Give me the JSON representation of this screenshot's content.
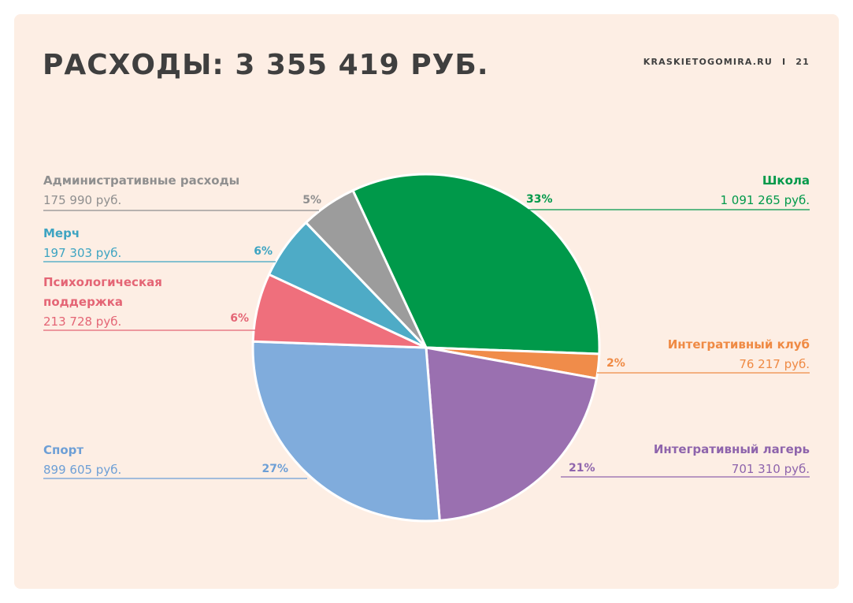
{
  "header": {
    "title": "РАСХОДЫ: 3 355 419 РУБ.",
    "site": "KRASKIETOGOMIRA.RU",
    "separator": "I",
    "page_number": "21"
  },
  "chart_data": {
    "type": "pie",
    "title": "РАСХОДЫ: 3 355 419 РУБ.",
    "slices": [
      {
        "name": "Школа",
        "amount_text": "1 091 265 руб.",
        "value": 1091265,
        "percent": "33%",
        "color": "#00994a",
        "label_color": "#00994a"
      },
      {
        "name": "Интегративный клуб",
        "amount_text": "76 217 руб.",
        "value": 76217,
        "percent": "2%",
        "color": "#f08c4a",
        "label_color": "#ef8a44"
      },
      {
        "name": "Интегративный лагерь",
        "amount_text": "701 310 руб.",
        "value": 701310,
        "percent": "21%",
        "color": "#9a70b0",
        "label_color": "#8e64ac"
      },
      {
        "name": "Спорт",
        "amount_text": "899 605 руб.",
        "value": 899605,
        "percent": "27%",
        "color": "#80acdc",
        "label_color": "#6d9fd6"
      },
      {
        "name": "Психологическая поддержка",
        "name_lines": [
          "Психологическая",
          "поддержка"
        ],
        "amount_text": "213 728 руб.",
        "value": 213728,
        "percent": "6%",
        "color": "#ef6f7c",
        "label_color": "#e46575"
      },
      {
        "name": "Мерч",
        "amount_text": "197 303 руб.",
        "value": 197303,
        "percent": "6%",
        "color": "#4eabc6",
        "label_color": "#3da4c2"
      },
      {
        "name": "Административные расходы",
        "amount_text": "175 990 руб.",
        "value": 175990,
        "percent": "5%",
        "color": "#9c9c9c",
        "label_color": "#8f8f8f"
      }
    ],
    "start_angle_deg": -25,
    "direction": "clockwise",
    "legend_position": "sides"
  }
}
